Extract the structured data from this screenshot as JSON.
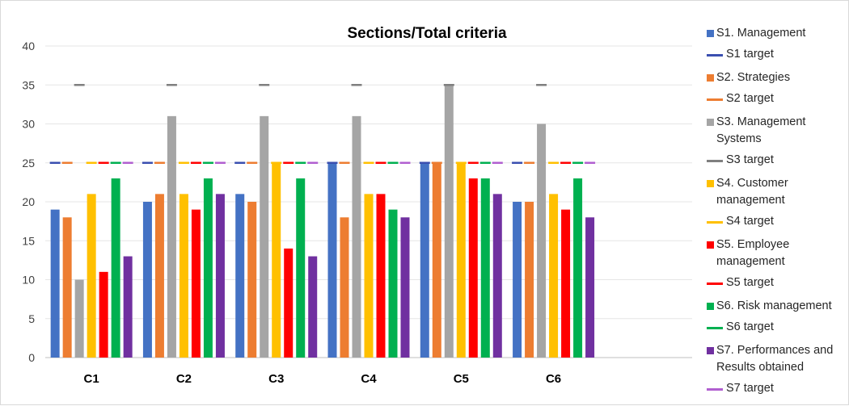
{
  "chart_data": {
    "type": "bar",
    "title": "Sections/Total criteria",
    "categories": [
      "C1",
      "C2",
      "C3",
      "C4",
      "C5",
      "C6"
    ],
    "ylim": [
      0,
      40
    ],
    "yticks": [
      0,
      5,
      10,
      15,
      20,
      25,
      30,
      35,
      40
    ],
    "grid": true,
    "legend_position": "right",
    "series": [
      {
        "name": "S1. Management",
        "color": "#4472c4",
        "values": [
          19,
          20,
          21,
          25,
          25,
          20
        ]
      },
      {
        "name": "S2. Strategies",
        "color": "#ed7d31",
        "values": [
          18,
          21,
          20,
          18,
          25,
          20
        ]
      },
      {
        "name": "S3. Management Systems",
        "color": "#a5a5a5",
        "values": [
          10,
          31,
          31,
          31,
          35,
          30
        ]
      },
      {
        "name": "S4. Customer management",
        "color": "#ffc000",
        "values": [
          21,
          21,
          25,
          21,
          25,
          21
        ]
      },
      {
        "name": "S5. Employee management",
        "color": "#ff0000",
        "values": [
          11,
          19,
          14,
          21,
          23,
          19
        ]
      },
      {
        "name": "S6. Risk management",
        "color": "#00b050",
        "values": [
          23,
          23,
          23,
          19,
          23,
          23
        ]
      },
      {
        "name": "S7. Performances and Results obtained",
        "color": "#7030a0",
        "values": [
          13,
          21,
          13,
          18,
          21,
          18
        ]
      }
    ],
    "targets": [
      {
        "name": "S1 target",
        "color": "#3a4fb0",
        "value": 25
      },
      {
        "name": "S2 target",
        "color": "#ed7d31",
        "value": 25
      },
      {
        "name": "S3 target",
        "color": "#7f7f7f",
        "value": 35
      },
      {
        "name": "S4 target",
        "color": "#ffc000",
        "value": 25
      },
      {
        "name": "S5 target",
        "color": "#ff0000",
        "value": 25
      },
      {
        "name": "S6 target",
        "color": "#00b050",
        "value": 25
      },
      {
        "name": "S7 target",
        "color": "#b15fd0",
        "value": 25
      }
    ],
    "legend": [
      {
        "kind": "bar",
        "label": "S1. Management",
        "color": "#4472c4"
      },
      {
        "kind": "line",
        "label": "S1 target",
        "color": "#3a4fb0"
      },
      {
        "kind": "bar",
        "label": "S2. Strategies",
        "color": "#ed7d31"
      },
      {
        "kind": "line",
        "label": "S2 target",
        "color": "#ed7d31"
      },
      {
        "kind": "bar",
        "label": "S3. Management Systems",
        "color": "#a5a5a5"
      },
      {
        "kind": "line",
        "label": "S3 target",
        "color": "#7f7f7f"
      },
      {
        "kind": "bar",
        "label": "S4. Customer management",
        "color": "#ffc000"
      },
      {
        "kind": "line",
        "label": "S4 target",
        "color": "#ffc000"
      },
      {
        "kind": "bar",
        "label": "S5. Employee management",
        "color": "#ff0000"
      },
      {
        "kind": "line",
        "label": "S5 target",
        "color": "#ff0000"
      },
      {
        "kind": "bar",
        "label": "S6. Risk management",
        "color": "#00b050"
      },
      {
        "kind": "line",
        "label": "S6 target",
        "color": "#00b050"
      },
      {
        "kind": "bar",
        "label": "S7. Performances and Results obtained",
        "color": "#7030a0"
      },
      {
        "kind": "line",
        "label": "S7 target",
        "color": "#b15fd0"
      }
    ]
  }
}
